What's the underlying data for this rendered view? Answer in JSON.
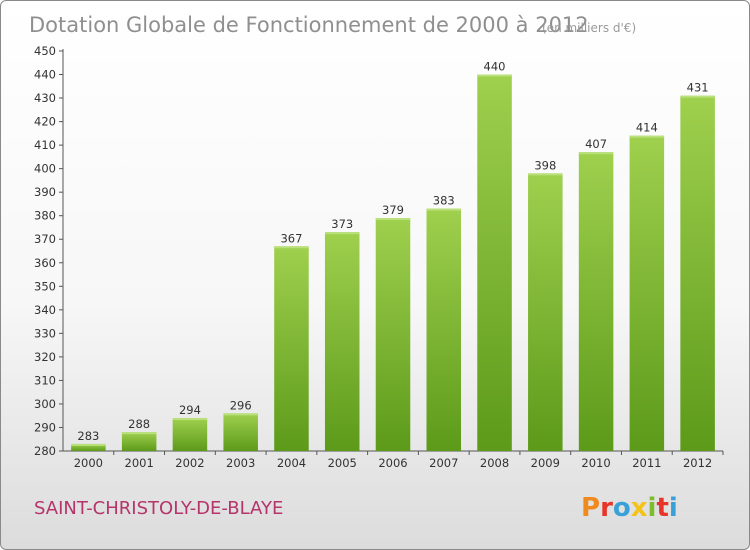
{
  "chart_data": {
    "type": "bar",
    "title": "Dotation Globale de Fonctionnement de 2000 à 2012",
    "subtitle": "(en milliers d'€)",
    "categories": [
      "2000",
      "2001",
      "2002",
      "2003",
      "2004",
      "2005",
      "2006",
      "2007",
      "2008",
      "2009",
      "2010",
      "2011",
      "2012"
    ],
    "values": [
      283,
      288,
      294,
      296,
      367,
      373,
      379,
      383,
      440,
      398,
      407,
      414,
      431
    ],
    "xlabel": "",
    "ylabel": "",
    "ylim": [
      280,
      450
    ],
    "ytick_step": 10,
    "grid": false,
    "bar_color_top": "#9fd04e",
    "bar_color_bottom": "#5d9a1a"
  },
  "footer": {
    "commune": "SAINT-CHRISTOLY-DE-BLAYE",
    "logo_text": "Proxiti",
    "logo_colors": [
      "#f08a1e",
      "#e8352a",
      "#3aa0d8",
      "#f5c21a",
      "#7cbd2c",
      "#e8352a",
      "#3aa0d8"
    ]
  }
}
